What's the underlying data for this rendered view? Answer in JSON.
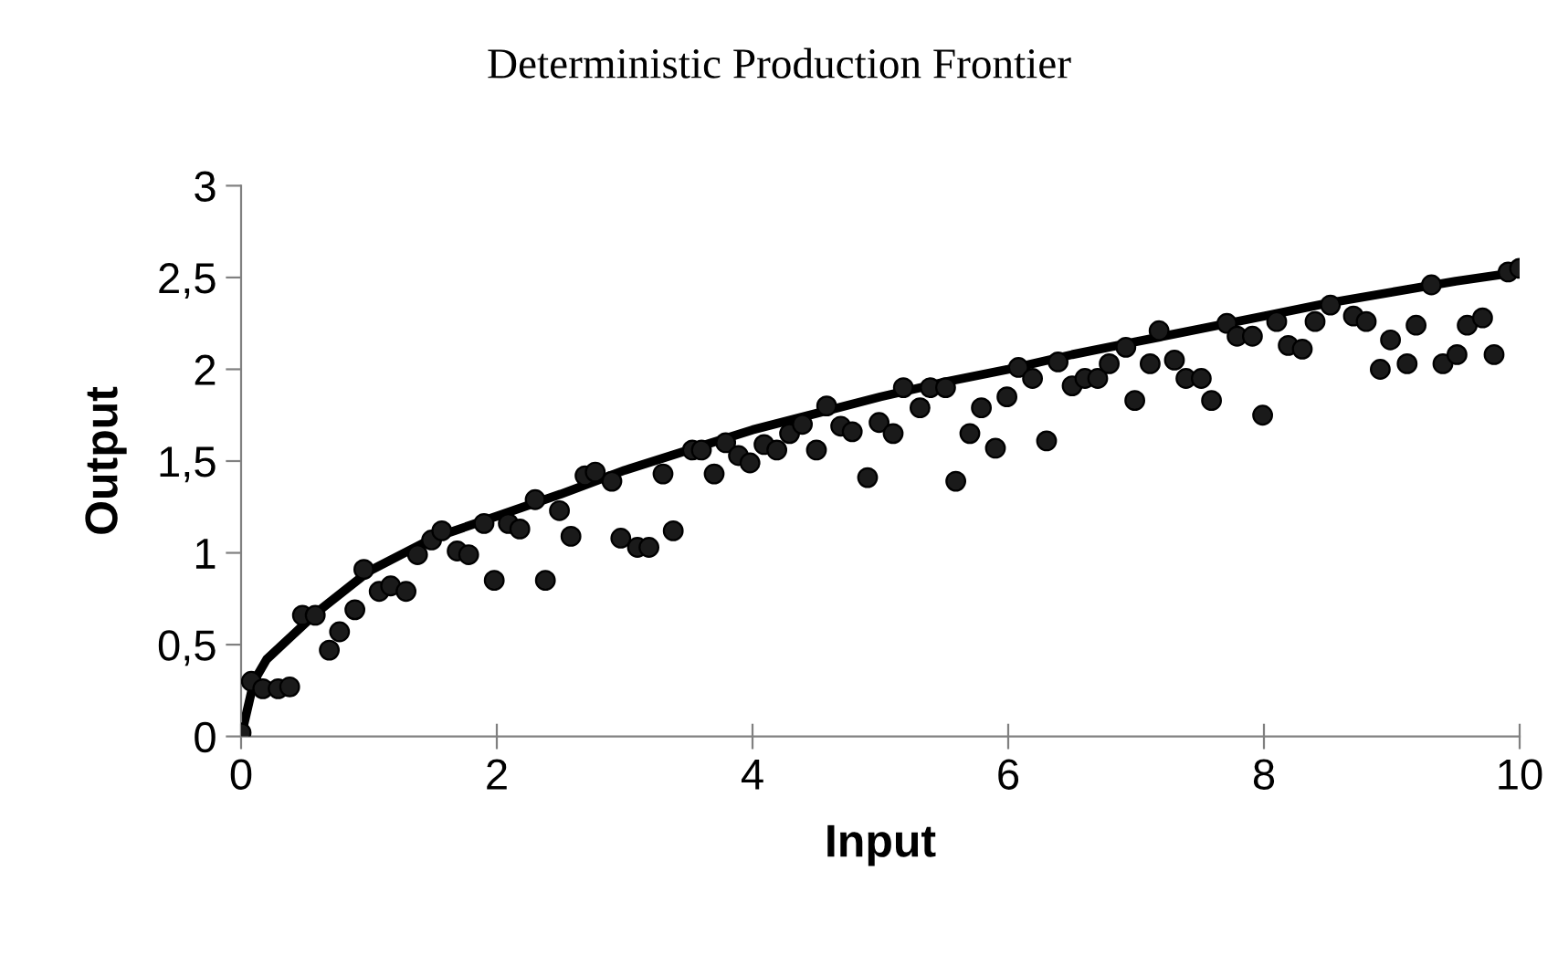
{
  "chart_data": {
    "type": "scatter",
    "title": "Deterministic Production Frontier",
    "xlabel": "Input",
    "ylabel": "Output",
    "xlim": [
      0,
      10
    ],
    "xticks": [
      0,
      2,
      4,
      6,
      8,
      10
    ],
    "ylim": [
      0,
      3
    ],
    "yticks": [
      0,
      {
        "value": 0.5,
        "label": "0,5"
      },
      1,
      {
        "value": 1.5,
        "label": "1,5"
      },
      2,
      {
        "value": 2.5,
        "label": "2,5"
      },
      3
    ],
    "grid": false,
    "legend": false,
    "series": [
      {
        "color": "#1a1a1a",
        "marker": "circle",
        "x": [
          0,
          0.08,
          0.17,
          0.29,
          0.38,
          0.48,
          0.58,
          0.69,
          0.77,
          0.89,
          0.96,
          1.08,
          1.17,
          1.29,
          1.38,
          1.49,
          1.57,
          1.69,
          1.78,
          1.9,
          1.98,
          2.09,
          2.18,
          2.3,
          2.38,
          2.49,
          2.58,
          2.69,
          2.77,
          2.9,
          2.97,
          3.1,
          3.19,
          3.3,
          3.38,
          3.53,
          3.6,
          3.7,
          3.79,
          3.89,
          3.98,
          4.09,
          4.19,
          4.29,
          4.39,
          4.5,
          4.58,
          4.69,
          4.78,
          4.9,
          4.99,
          5.1,
          5.18,
          5.31,
          5.39,
          5.51,
          5.59,
          5.7,
          5.79,
          5.9,
          5.99,
          6.08,
          6.19,
          6.3,
          6.39,
          6.5,
          6.6,
          6.7,
          6.79,
          6.92,
          6.99,
          7.11,
          7.18,
          7.3,
          7.39,
          7.51,
          7.59,
          7.71,
          7.79,
          7.91,
          7.99,
          8.1,
          8.19,
          8.3,
          8.4,
          8.52,
          8.7,
          8.8,
          8.91,
          8.99,
          9.12,
          9.19,
          9.31,
          9.4,
          9.51,
          9.59,
          9.71,
          9.8,
          9.91,
          10
        ],
        "values": [
          0.02,
          0.3,
          0.26,
          0.26,
          0.27,
          0.66,
          0.66,
          0.47,
          0.57,
          0.69,
          0.91,
          0.79,
          0.82,
          0.79,
          0.99,
          1.07,
          1.12,
          1.01,
          0.99,
          1.16,
          0.85,
          1.16,
          1.13,
          1.29,
          0.85,
          1.23,
          1.09,
          1.42,
          1.44,
          1.39,
          1.08,
          1.03,
          1.03,
          1.43,
          1.12,
          1.56,
          1.56,
          1.43,
          1.6,
          1.53,
          1.49,
          1.59,
          1.56,
          1.65,
          1.7,
          1.56,
          1.8,
          1.69,
          1.66,
          1.41,
          1.71,
          1.65,
          1.9,
          1.79,
          1.9,
          1.9,
          1.39,
          1.65,
          1.79,
          1.57,
          1.85,
          2.01,
          1.95,
          1.61,
          2.04,
          1.91,
          1.95,
          1.95,
          2.03,
          2.12,
          1.83,
          2.03,
          2.21,
          2.05,
          1.95,
          1.95,
          1.83,
          2.25,
          2.18,
          2.18,
          1.75,
          2.26,
          2.13,
          2.11,
          2.26,
          2.35,
          2.29,
          2.26,
          2.0,
          2.16,
          2.03,
          2.24,
          2.46,
          2.03,
          2.08,
          2.24,
          2.28,
          2.08,
          2.53,
          2.55
        ]
      },
      {
        "type": "line",
        "color": "#000000",
        "marker": "none",
        "line_style": "solid",
        "x": [
          0,
          0.1,
          0.2,
          0.4,
          0.6,
          1,
          1.5,
          2,
          2.5,
          3,
          3.5,
          4,
          4.5,
          5,
          5.5,
          6,
          6.5,
          7,
          7.5,
          8,
          8.5,
          9,
          9.5,
          10
        ],
        "values": [
          0,
          0.3,
          0.42,
          0.55,
          0.68,
          0.9,
          1.08,
          1.2,
          1.32,
          1.45,
          1.56,
          1.67,
          1.76,
          1.85,
          1.93,
          2.0,
          2.08,
          2.15,
          2.22,
          2.29,
          2.36,
          2.42,
          2.48,
          2.53
        ]
      }
    ]
  }
}
